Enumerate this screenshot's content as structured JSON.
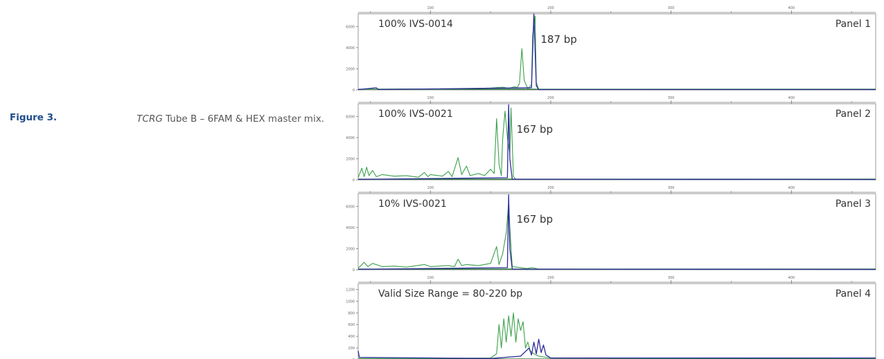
{
  "figure": {
    "number": "Figure 3.",
    "gene": "TCRG",
    "rest": " Tube B – 6FAM & HEX master mix."
  },
  "colors": {
    "green": "#3aa04a",
    "dark_green": "#0d6b22",
    "blue": "#2a2a9a",
    "axis": "#777777",
    "frame": "#999999"
  },
  "chart_data": [
    {
      "type": "line",
      "panel_label": "Panel 1",
      "sample_label": "100% IVS-0014",
      "peak_label": "187 bp",
      "x_ticks": [
        100,
        200,
        300,
        400
      ],
      "xlim": [
        40,
        470
      ],
      "y_ticks": [
        0,
        2000,
        4000,
        6000
      ],
      "ylim": [
        0,
        7200
      ],
      "series": [
        {
          "color": "green",
          "points": [
            [
              40,
              60
            ],
            [
              80,
              100
            ],
            [
              100,
              60
            ],
            [
              130,
              120
            ],
            [
              150,
              180
            ],
            [
              160,
              260
            ],
            [
              165,
              150
            ],
            [
              170,
              300
            ],
            [
              172,
              220
            ],
            [
              174,
              600
            ],
            [
              176,
              3900
            ],
            [
              178,
              900
            ],
            [
              181,
              120
            ],
            [
              184,
              500
            ],
            [
              185,
              5200
            ],
            [
              187,
              7000
            ],
            [
              188,
              700
            ],
            [
              190,
              60
            ],
            [
              470,
              40
            ]
          ]
        },
        {
          "color": "blue",
          "points": [
            [
              40,
              30
            ],
            [
              55,
              200
            ],
            [
              57,
              40
            ],
            [
              184,
              200
            ],
            [
              186,
              7200
            ],
            [
              188,
              400
            ],
            [
              190,
              30
            ],
            [
              470,
              30
            ]
          ]
        }
      ]
    },
    {
      "type": "line",
      "panel_label": "Panel 2",
      "sample_label": "100% IVS-0021",
      "peak_label": "167 bp",
      "x_ticks": [
        100,
        200,
        300,
        400
      ],
      "xlim": [
        40,
        470
      ],
      "y_ticks": [
        0,
        2000,
        4000,
        6000
      ],
      "ylim": [
        0,
        7200
      ],
      "series": [
        {
          "color": "green",
          "points": [
            [
              40,
              200
            ],
            [
              43,
              1100
            ],
            [
              45,
              300
            ],
            [
              47,
              1200
            ],
            [
              49,
              400
            ],
            [
              52,
              900
            ],
            [
              55,
              300
            ],
            [
              60,
              500
            ],
            [
              70,
              350
            ],
            [
              80,
              400
            ],
            [
              90,
              250
            ],
            [
              95,
              700
            ],
            [
              98,
              300
            ],
            [
              100,
              500
            ],
            [
              110,
              350
            ],
            [
              115,
              800
            ],
            [
              118,
              300
            ],
            [
              123,
              2100
            ],
            [
              126,
              500
            ],
            [
              130,
              1300
            ],
            [
              133,
              400
            ],
            [
              140,
              600
            ],
            [
              145,
              400
            ],
            [
              150,
              1000
            ],
            [
              153,
              600
            ],
            [
              155,
              5800
            ],
            [
              157,
              1500
            ],
            [
              159,
              400
            ],
            [
              160,
              3800
            ],
            [
              162,
              6500
            ],
            [
              164,
              4000
            ],
            [
              166,
              2500
            ],
            [
              167,
              6800
            ],
            [
              169,
              300
            ],
            [
              171,
              60
            ],
            [
              470,
              40
            ]
          ]
        },
        {
          "color": "blue",
          "points": [
            [
              40,
              40
            ],
            [
              164,
              200
            ],
            [
              165,
              7100
            ],
            [
              166,
              2000
            ],
            [
              168,
              60
            ],
            [
              470,
              30
            ]
          ]
        }
      ]
    },
    {
      "type": "line",
      "panel_label": "Panel 3",
      "sample_label": "10% IVS-0021",
      "peak_label": "167 bp",
      "x_ticks": [
        100,
        200,
        300,
        400
      ],
      "xlim": [
        40,
        470
      ],
      "y_ticks": [
        0,
        2000,
        4000,
        6000
      ],
      "ylim": [
        0,
        7200
      ],
      "series": [
        {
          "color": "green",
          "points": [
            [
              40,
              150
            ],
            [
              45,
              700
            ],
            [
              48,
              300
            ],
            [
              52,
              600
            ],
            [
              60,
              300
            ],
            [
              70,
              350
            ],
            [
              80,
              250
            ],
            [
              95,
              500
            ],
            [
              100,
              300
            ],
            [
              115,
              400
            ],
            [
              120,
              300
            ],
            [
              123,
              1000
            ],
            [
              126,
              400
            ],
            [
              130,
              500
            ],
            [
              140,
              400
            ],
            [
              150,
              600
            ],
            [
              155,
              2200
            ],
            [
              157,
              500
            ],
            [
              160,
              1500
            ],
            [
              163,
              3500
            ],
            [
              165,
              6400
            ],
            [
              166,
              4000
            ],
            [
              168,
              300
            ],
            [
              175,
              200
            ],
            [
              180,
              120
            ],
            [
              185,
              200
            ],
            [
              190,
              60
            ],
            [
              470,
              40
            ]
          ]
        },
        {
          "color": "blue",
          "points": [
            [
              40,
              40
            ],
            [
              164,
              200
            ],
            [
              165,
              7100
            ],
            [
              166,
              2000
            ],
            [
              168,
              60
            ],
            [
              470,
              30
            ]
          ]
        }
      ]
    },
    {
      "type": "line",
      "panel_label": "Panel 4",
      "sample_label": "Valid Size Range = 80-220 bp",
      "peak_label": "",
      "x_ticks": [
        100,
        200,
        300,
        400
      ],
      "xlim": [
        40,
        470
      ],
      "y_ticks": [
        0,
        200,
        400,
        600,
        800,
        1000,
        1200
      ],
      "ylim": [
        0,
        1300
      ],
      "series": [
        {
          "color": "green",
          "points": [
            [
              40,
              20
            ],
            [
              100,
              20
            ],
            [
              150,
              30
            ],
            [
              155,
              100
            ],
            [
              157,
              600
            ],
            [
              159,
              200
            ],
            [
              161,
              700
            ],
            [
              163,
              300
            ],
            [
              165,
              750
            ],
            [
              167,
              400
            ],
            [
              169,
              800
            ],
            [
              171,
              300
            ],
            [
              173,
              700
            ],
            [
              175,
              500
            ],
            [
              177,
              650
            ],
            [
              179,
              200
            ],
            [
              181,
              300
            ],
            [
              183,
              150
            ],
            [
              186,
              100
            ],
            [
              190,
              60
            ],
            [
              200,
              30
            ],
            [
              470,
              20
            ]
          ]
        },
        {
          "color": "blue",
          "points": [
            [
              40,
              150
            ],
            [
              41,
              40
            ],
            [
              150,
              20
            ],
            [
              175,
              60
            ],
            [
              182,
              200
            ],
            [
              184,
              80
            ],
            [
              186,
              300
            ],
            [
              188,
              100
            ],
            [
              190,
              350
            ],
            [
              192,
              120
            ],
            [
              194,
              250
            ],
            [
              196,
              80
            ],
            [
              200,
              30
            ],
            [
              470,
              30
            ]
          ]
        }
      ]
    }
  ]
}
